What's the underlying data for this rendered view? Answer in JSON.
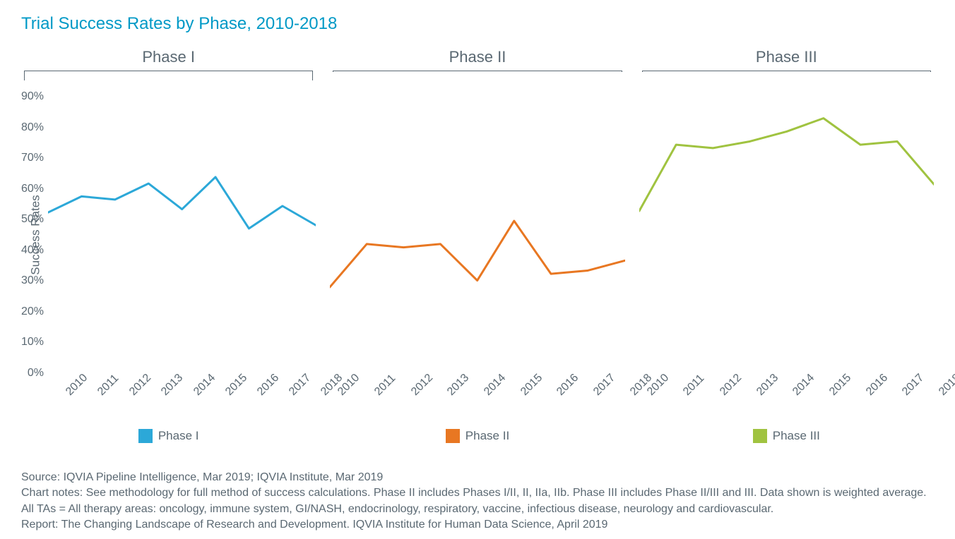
{
  "title": "Trial Success Rates by Phase, 2010-2018",
  "title_color": "#0099c6",
  "yaxis_label": "Success Rates",
  "ylim": [
    0,
    90
  ],
  "ytick_step": 10,
  "yticks": [
    "90%",
    "80%",
    "70%",
    "60%",
    "50%",
    "40%",
    "30%",
    "20%",
    "10%",
    "0%"
  ],
  "xlabels": [
    "2010",
    "2011",
    "2012",
    "2013",
    "2014",
    "2015",
    "2016",
    "2017",
    "2018"
  ],
  "line_width": 3,
  "text_color": "#5a6872",
  "background_color": "#ffffff",
  "panels": [
    {
      "name": "Phase I",
      "legend": "Phase I",
      "color": "#2ca8d8",
      "values": [
        52,
        57,
        56,
        61,
        53,
        63,
        47,
        54,
        48
      ]
    },
    {
      "name": "Phase II",
      "legend": "Phase II",
      "color": "#e87722",
      "values": [
        28,
        41,
        40,
        41,
        30,
        48,
        32,
        33,
        36
      ]
    },
    {
      "name": "Phase III",
      "legend": "Phase III",
      "color": "#a0c340",
      "values": [
        51,
        71,
        70,
        72,
        75,
        79,
        71,
        72,
        59
      ]
    }
  ],
  "footnotes": {
    "source": "Source: IQVIA Pipeline Intelligence, Mar 2019; IQVIA Institute, Mar 2019",
    "notes": "Chart notes: See methodology for full method of success calculations. Phase II includes Phases I/II, II, IIa, IIb. Phase III includes Phase II/III and III. Data shown is weighted average. All TAs = All therapy areas: oncology, immune system, GI/NASH, endocrinology, respiratory, vaccine, infectious disease, neurology and cardiovascular.",
    "report": "Report: The Changing Landscape of Research and Development. IQVIA Institute for Human Data Science, April 2019"
  }
}
